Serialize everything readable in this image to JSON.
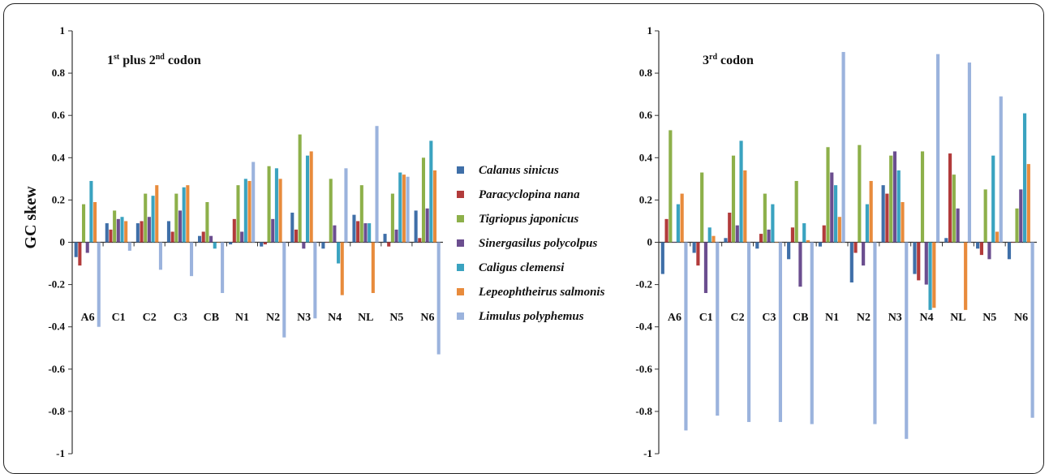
{
  "chart_data": {
    "type": "bar",
    "ylabel": "GC skew",
    "ylim": [
      -1,
      1
    ],
    "yticks": [
      "1",
      "0.8",
      "0.6",
      "0.4",
      "0.2",
      "0",
      "-0.2",
      "-0.4",
      "-0.6",
      "-0.8",
      "-1"
    ],
    "categories": [
      "A6",
      "C1",
      "C2",
      "C3",
      "CB",
      "N1",
      "N2",
      "N3",
      "N4",
      "NL",
      "N5",
      "N6"
    ],
    "legend": [
      {
        "name": "Calanus sinicus",
        "color": "#3F6FA8"
      },
      {
        "name": "Paracyclopina nana",
        "color": "#B23B3B"
      },
      {
        "name": "Tigriopus japonicus",
        "color": "#8DB04A"
      },
      {
        "name": "Sinergasilus polycolpus",
        "color": "#6B4E8F"
      },
      {
        "name": "Caligus clemensi",
        "color": "#3AA3C0"
      },
      {
        "name": "Lepeophtheirus salmonis",
        "color": "#E88B3C"
      },
      {
        "name": "Limulus polyphemus",
        "color": "#9BB3DD"
      }
    ],
    "panels": [
      {
        "title_main": "1",
        "title_sup1": "st",
        "title_mid": " plus 2",
        "title_sup2": "nd",
        "title_end": " codon",
        "series": [
          {
            "name": "Calanus sinicus",
            "values": [
              -0.07,
              0.09,
              0.09,
              0.1,
              0.03,
              -0.01,
              -0.02,
              0.14,
              -0.03,
              0.13,
              0.04,
              0.15
            ]
          },
          {
            "name": "Paracyclopina nana",
            "values": [
              -0.11,
              0.06,
              0.1,
              0.05,
              0.05,
              0.11,
              -0.01,
              0.06,
              0.0,
              0.1,
              -0.02,
              0.02
            ]
          },
          {
            "name": "Tigriopus japonicus",
            "values": [
              0.18,
              0.15,
              0.23,
              0.23,
              0.19,
              0.27,
              0.36,
              0.51,
              0.3,
              0.27,
              0.23,
              0.4
            ]
          },
          {
            "name": "Sinergasilus polycolpus",
            "values": [
              -0.05,
              0.11,
              0.12,
              0.15,
              0.03,
              0.05,
              0.11,
              -0.03,
              0.08,
              0.09,
              0.06,
              0.16
            ]
          },
          {
            "name": "Caligus clemensi",
            "values": [
              0.29,
              0.12,
              0.22,
              0.26,
              -0.03,
              0.3,
              0.35,
              0.41,
              -0.1,
              0.09,
              0.33,
              0.48
            ]
          },
          {
            "name": "Lepeophtheirus salmonis",
            "values": [
              0.19,
              0.1,
              0.27,
              0.27,
              0.0,
              0.29,
              0.3,
              0.43,
              -0.25,
              -0.24,
              0.32,
              0.34
            ]
          },
          {
            "name": "Limulus polyphemus",
            "values": [
              -0.4,
              -0.04,
              -0.13,
              -0.16,
              -0.24,
              0.38,
              -0.45,
              -0.36,
              0.35,
              0.55,
              0.31,
              -0.53
            ]
          }
        ]
      },
      {
        "title_main": "3",
        "title_sup1": "rd",
        "title_mid": " codon",
        "title_sup2": "",
        "title_end": "",
        "series": [
          {
            "name": "Calanus sinicus",
            "values": [
              -0.15,
              -0.05,
              0.02,
              -0.03,
              -0.08,
              -0.02,
              -0.19,
              0.27,
              -0.15,
              0.02,
              -0.03,
              -0.08
            ]
          },
          {
            "name": "Paracyclopina nana",
            "values": [
              0.11,
              -0.11,
              0.14,
              0.04,
              0.07,
              0.08,
              -0.05,
              0.23,
              -0.18,
              0.42,
              -0.06,
              0.0
            ]
          },
          {
            "name": "Tigriopus japonicus",
            "values": [
              0.53,
              0.33,
              0.41,
              0.23,
              0.29,
              0.45,
              0.46,
              0.41,
              0.43,
              0.32,
              0.25,
              0.16
            ]
          },
          {
            "name": "Sinergasilus polycolpus",
            "values": [
              0.0,
              -0.24,
              0.08,
              0.06,
              -0.21,
              0.33,
              -0.11,
              0.43,
              -0.2,
              0.16,
              -0.08,
              0.25
            ]
          },
          {
            "name": "Caligus clemensi",
            "values": [
              0.18,
              0.07,
              0.48,
              0.18,
              0.09,
              0.27,
              0.18,
              0.34,
              -0.32,
              0.0,
              0.41,
              0.61
            ]
          },
          {
            "name": "Lepeophtheirus salmonis",
            "values": [
              0.23,
              0.03,
              0.34,
              0.0,
              0.01,
              0.12,
              0.29,
              0.19,
              -0.31,
              -0.32,
              0.05,
              0.37
            ]
          },
          {
            "name": "Limulus polyphemus",
            "values": [
              -0.89,
              -0.82,
              -0.85,
              -0.85,
              -0.86,
              0.9,
              -0.86,
              -0.93,
              0.89,
              0.85,
              0.69,
              -0.83
            ]
          }
        ]
      }
    ]
  }
}
